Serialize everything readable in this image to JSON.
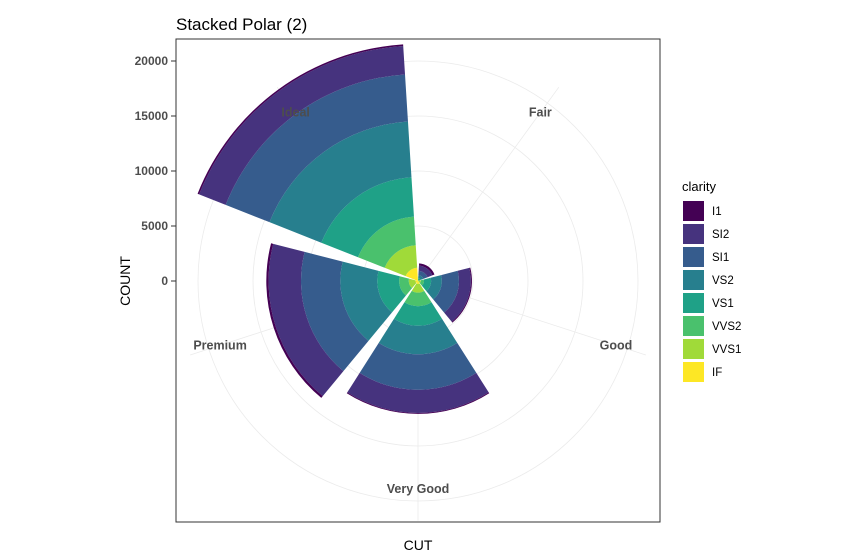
{
  "chart_data": {
    "type": "polar-stacked-bar",
    "title": "Stacked Polar (2)",
    "xlabel": "CUT",
    "ylabel": "COUNT",
    "y_ticks": [
      0,
      5000,
      10000,
      15000,
      20000
    ],
    "ylim": [
      0,
      22000
    ],
    "categories": [
      "Fair",
      "Good",
      "Very Good",
      "Premium",
      "Ideal"
    ],
    "legend": {
      "title": "clarity",
      "position": "right"
    },
    "grid": true,
    "series": [
      {
        "name": "I1",
        "color": "#440154",
        "values": [
          210,
          96,
          84,
          205,
          146
        ]
      },
      {
        "name": "SI2",
        "color": "#46337e",
        "values": [
          466,
          1081,
          2100,
          2949,
          2598
        ]
      },
      {
        "name": "SI1",
        "color": "#365c8d",
        "values": [
          408,
          1560,
          3240,
          3575,
          4282
        ]
      },
      {
        "name": "VS2",
        "color": "#277f8e",
        "values": [
          261,
          978,
          2591,
          3357,
          5071
        ]
      },
      {
        "name": "VS1",
        "color": "#1fa187",
        "values": [
          170,
          648,
          1775,
          1989,
          3589
        ]
      },
      {
        "name": "VVS2",
        "color": "#4ac16d",
        "values": [
          69,
          286,
          1235,
          870,
          2606
        ]
      },
      {
        "name": "VVS1",
        "color": "#a0da39",
        "values": [
          17,
          186,
          789,
          616,
          2047
        ]
      },
      {
        "name": "IF",
        "color": "#fde725",
        "values": [
          9,
          71,
          268,
          230,
          1212
        ]
      }
    ]
  }
}
